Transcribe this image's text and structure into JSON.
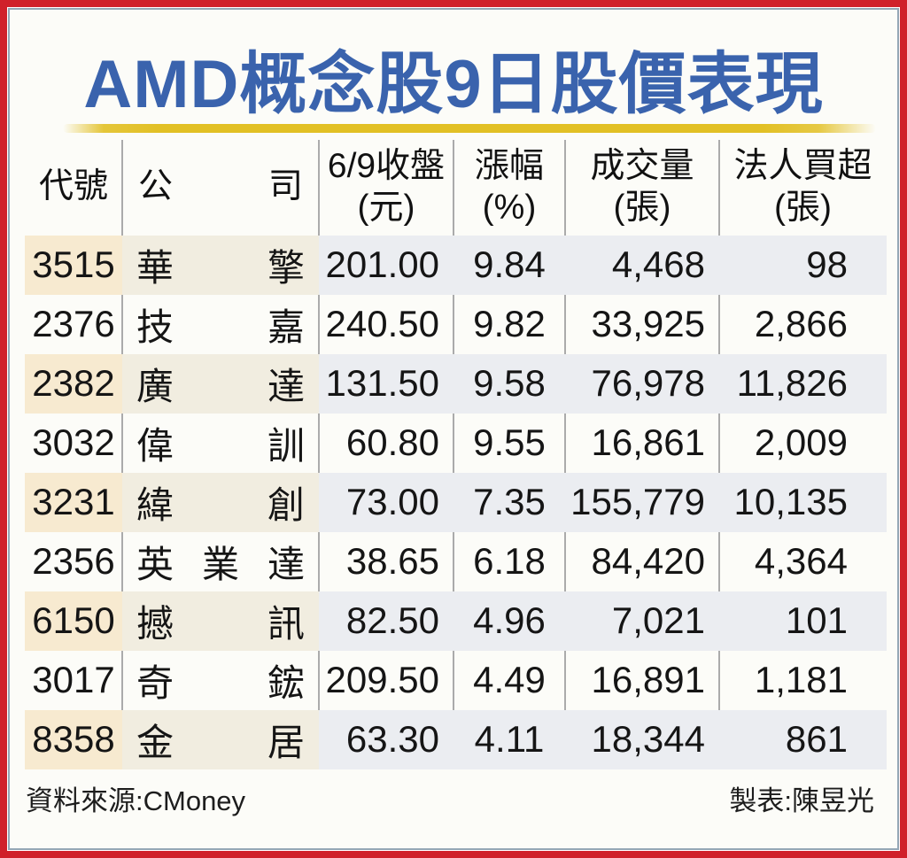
{
  "page": {
    "title": "AMD概念股9日股價表現",
    "source_label": "資料來源:CMoney",
    "credit_label": "製表:陳昱光"
  },
  "colors": {
    "frame_red": "#d0202a",
    "inner_border": "#94a6b5",
    "title_blue": "#3a63ad",
    "underline_gold": "#e2c025",
    "shade_cream": "#f7ead0",
    "shade_gray": "#ebedf1",
    "divider_gray": "#ababab"
  },
  "table": {
    "headers": [
      {
        "line1": "代號",
        "line2": "",
        "spread": false
      },
      {
        "line1": "公司",
        "line2": "",
        "spread": true
      },
      {
        "line1": "6/9收盤",
        "line2": "(元)",
        "spread": false
      },
      {
        "line1": "漲幅",
        "line2": "(%)",
        "spread": false
      },
      {
        "line1": "成交量",
        "line2": "(張)",
        "spread": false
      },
      {
        "line1": "法人買超",
        "line2": "(張)",
        "spread": false
      }
    ],
    "rows": [
      {
        "code": "3515",
        "company": "華擎",
        "close": "201.00",
        "change": "9.84",
        "volume": "4,468",
        "net_buy": "98",
        "shaded": true
      },
      {
        "code": "2376",
        "company": "技嘉",
        "close": "240.50",
        "change": "9.82",
        "volume": "33,925",
        "net_buy": "2,866",
        "shaded": false
      },
      {
        "code": "2382",
        "company": "廣達",
        "close": "131.50",
        "change": "9.58",
        "volume": "76,978",
        "net_buy": "11,826",
        "shaded": true
      },
      {
        "code": "3032",
        "company": "偉訓",
        "close": "60.80",
        "change": "9.55",
        "volume": "16,861",
        "net_buy": "2,009",
        "shaded": false
      },
      {
        "code": "3231",
        "company": "緯創",
        "close": "73.00",
        "change": "7.35",
        "volume": "155,779",
        "net_buy": "10,135",
        "shaded": true
      },
      {
        "code": "2356",
        "company": "英業達",
        "close": "38.65",
        "change": "6.18",
        "volume": "84,420",
        "net_buy": "4,364",
        "shaded": false
      },
      {
        "code": "6150",
        "company": "撼訊",
        "close": "82.50",
        "change": "4.96",
        "volume": "7,021",
        "net_buy": "101",
        "shaded": true
      },
      {
        "code": "3017",
        "company": "奇鋐",
        "close": "209.50",
        "change": "4.49",
        "volume": "16,891",
        "net_buy": "1,181",
        "shaded": false
      },
      {
        "code": "8358",
        "company": "金居",
        "close": "63.30",
        "change": "4.11",
        "volume": "18,344",
        "net_buy": "861",
        "shaded": true
      }
    ]
  },
  "chart_data": {
    "type": "table",
    "title": "AMD概念股9日股價表現",
    "columns": [
      "代號",
      "公司",
      "6/9收盤(元)",
      "漲幅(%)",
      "成交量(張)",
      "法人買超(張)"
    ],
    "rows": [
      [
        "3515",
        "華擎",
        201.0,
        9.84,
        4468,
        98
      ],
      [
        "2376",
        "技嘉",
        240.5,
        9.82,
        33925,
        2866
      ],
      [
        "2382",
        "廣達",
        131.5,
        9.58,
        76978,
        11826
      ],
      [
        "3032",
        "偉訓",
        60.8,
        9.55,
        16861,
        2009
      ],
      [
        "3231",
        "緯創",
        73.0,
        7.35,
        155779,
        10135
      ],
      [
        "2356",
        "英業達",
        38.65,
        6.18,
        84420,
        4364
      ],
      [
        "6150",
        "撼訊",
        82.5,
        4.96,
        7021,
        101
      ],
      [
        "3017",
        "奇鋐",
        209.5,
        4.49,
        16891,
        1181
      ],
      [
        "8358",
        "金居",
        63.3,
        4.11,
        18344,
        861
      ]
    ],
    "source": "CMoney",
    "credit": "陳昱光"
  }
}
